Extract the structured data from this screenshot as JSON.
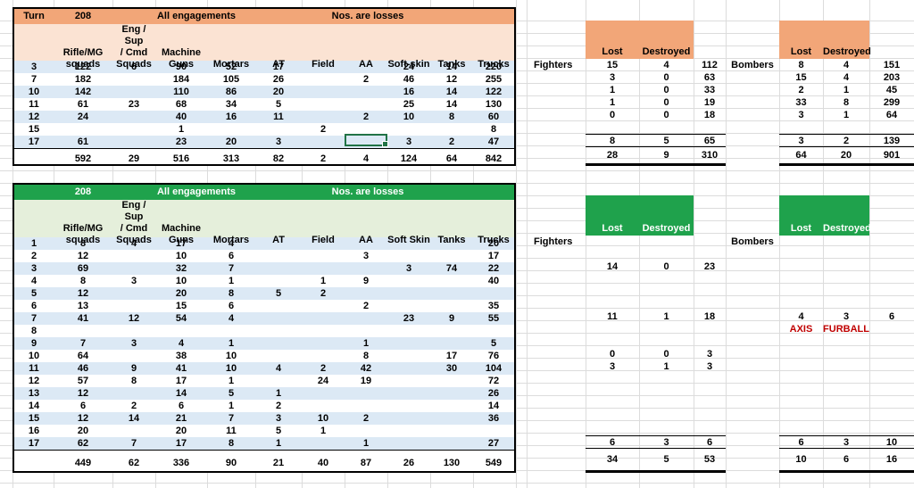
{
  "top_section": {
    "title": {
      "turn_label": "Turn",
      "turn_value": "208",
      "engagements": "All engagements",
      "losses": "Nos. are losses"
    },
    "columns": [
      "Rifle/MG\nsquads",
      "Eng / Sup\n/ Cmd\nSquads",
      "Machine\nGuns",
      "Mortars",
      "AT",
      "Field",
      "AA",
      "Soft-skin",
      "Tanks",
      "Trucks"
    ],
    "rows": [
      [
        "3",
        "122",
        "6",
        "90",
        "52",
        "17",
        "",
        "",
        "24",
        "14",
        "220"
      ],
      [
        "7",
        "182",
        "",
        "184",
        "105",
        "26",
        "",
        "2",
        "46",
        "12",
        "255"
      ],
      [
        "10",
        "142",
        "",
        "110",
        "86",
        "20",
        "",
        "",
        "16",
        "14",
        "122"
      ],
      [
        "11",
        "61",
        "23",
        "68",
        "34",
        "5",
        "",
        "",
        "25",
        "14",
        "130"
      ],
      [
        "12",
        "24",
        "",
        "40",
        "16",
        "11",
        "",
        "2",
        "10",
        "8",
        "60"
      ],
      [
        "15",
        "",
        "",
        "1",
        "",
        "",
        "2",
        "",
        "",
        "",
        "8"
      ],
      [
        "17",
        "61",
        "",
        "23",
        "20",
        "3",
        "",
        "",
        "3",
        "2",
        "47"
      ]
    ],
    "totals": [
      "592",
      "29",
      "516",
      "313",
      "82",
      "2",
      "4",
      "124",
      "64",
      "842"
    ],
    "selected_cell": {
      "row": "17",
      "column": "AA"
    },
    "air": {
      "lost_label": "Lost",
      "destroyed_label": "Destroyed",
      "fighters_label": "Fighters",
      "bombers_label": "Bombers",
      "fighters_rows": [
        [
          "15",
          "4",
          "112"
        ],
        [
          "3",
          "0",
          "63"
        ],
        [
          "1",
          "0",
          "33"
        ],
        [
          "1",
          "0",
          "19"
        ],
        [
          "0",
          "0",
          "18"
        ],
        [
          "",
          "",
          ""
        ],
        [
          "8",
          "5",
          "65"
        ]
      ],
      "fighters_totals": [
        "28",
        "9",
        "310"
      ],
      "bombers_rows": [
        [
          "8",
          "4",
          "151"
        ],
        [
          "15",
          "4",
          "203"
        ],
        [
          "2",
          "1",
          "45"
        ],
        [
          "33",
          "8",
          "299"
        ],
        [
          "3",
          "1",
          "64"
        ],
        [
          "",
          "",
          ""
        ],
        [
          "3",
          "2",
          "139"
        ]
      ],
      "bombers_totals": [
        "64",
        "20",
        "901"
      ]
    }
  },
  "bottom_section": {
    "title": {
      "turn_value": "208",
      "engagements": "All engagements",
      "losses": "Nos. are losses"
    },
    "columns": [
      "Rifle/MG\nsquads",
      "Eng / Sup\n/ Cmd\nSquads",
      "Machine\nGuns",
      "Mortars",
      "AT",
      "Field",
      "AA",
      "Soft Skin",
      "Tanks",
      "Trucks"
    ],
    "rows": [
      [
        "1",
        "8",
        "4",
        "17",
        "4",
        "",
        "",
        "",
        "",
        "",
        "20"
      ],
      [
        "2",
        "12",
        "",
        "10",
        "6",
        "",
        "",
        "3",
        "",
        "",
        "17"
      ],
      [
        "3",
        "69",
        "",
        "32",
        "7",
        "",
        "",
        "",
        "3",
        "74",
        "22"
      ],
      [
        "4",
        "8",
        "3",
        "10",
        "1",
        "",
        "1",
        "9",
        "",
        "",
        "40"
      ],
      [
        "5",
        "12",
        "",
        "20",
        "8",
        "5",
        "2",
        "",
        "",
        "",
        ""
      ],
      [
        "6",
        "13",
        "",
        "15",
        "6",
        "",
        "",
        "2",
        "",
        "",
        "35"
      ],
      [
        "7",
        "41",
        "12",
        "54",
        "4",
        "",
        "",
        "",
        "23",
        "9",
        "55"
      ],
      [
        "8",
        "",
        "",
        "",
        "",
        "",
        "",
        "",
        "",
        "",
        ""
      ],
      [
        "9",
        "7",
        "3",
        "4",
        "1",
        "",
        "",
        "1",
        "",
        "",
        "5"
      ],
      [
        "10",
        "64",
        "",
        "38",
        "10",
        "",
        "",
        "8",
        "",
        "17",
        "76"
      ],
      [
        "11",
        "46",
        "9",
        "41",
        "10",
        "4",
        "2",
        "42",
        "",
        "30",
        "104"
      ],
      [
        "12",
        "57",
        "8",
        "17",
        "1",
        "",
        "24",
        "19",
        "",
        "",
        "72"
      ],
      [
        "13",
        "12",
        "",
        "14",
        "5",
        "1",
        "",
        "",
        "",
        "",
        "26"
      ],
      [
        "14",
        "6",
        "2",
        "6",
        "1",
        "2",
        "",
        "",
        "",
        "",
        "14"
      ],
      [
        "15",
        "12",
        "14",
        "21",
        "7",
        "3",
        "10",
        "2",
        "",
        "",
        "36"
      ],
      [
        "16",
        "20",
        "",
        "20",
        "11",
        "5",
        "1",
        "",
        "",
        "",
        ""
      ],
      [
        "17",
        "62",
        "7",
        "17",
        "8",
        "1",
        "",
        "1",
        "",
        "",
        "27"
      ]
    ],
    "totals": [
      "449",
      "62",
      "336",
      "90",
      "21",
      "40",
      "87",
      "26",
      "130",
      "549"
    ],
    "air": {
      "lost_label": "Lost",
      "destroyed_label": "Destroyed",
      "fighters_label": "Fighters",
      "bombers_label": "Bombers",
      "fighters_rows": [
        [
          "",
          "",
          ""
        ],
        [
          "",
          "",
          ""
        ],
        [
          "14",
          "0",
          "23"
        ],
        [
          "",
          "",
          ""
        ],
        [
          "",
          "",
          ""
        ],
        [
          "",
          "",
          ""
        ],
        [
          "11",
          "1",
          "18"
        ],
        [
          "",
          "",
          ""
        ],
        [
          "",
          "",
          ""
        ],
        [
          "0",
          "0",
          "3"
        ],
        [
          "3",
          "1",
          "3"
        ],
        [
          "",
          "",
          ""
        ],
        [
          "",
          "",
          ""
        ],
        [
          "",
          "",
          ""
        ],
        [
          "",
          "",
          ""
        ],
        [
          "",
          "",
          ""
        ],
        [
          "6",
          "3",
          "6"
        ]
      ],
      "fighters_totals": [
        "34",
        "5",
        "53"
      ],
      "bombers_rows": [
        [
          "",
          "",
          ""
        ],
        [
          "",
          "",
          ""
        ],
        [
          "",
          "",
          ""
        ],
        [
          "",
          "",
          ""
        ],
        [
          "",
          "",
          ""
        ],
        [
          "",
          "",
          ""
        ],
        [
          "4",
          "3",
          "6"
        ],
        [
          "AXIS",
          "FURBALL",
          ""
        ],
        [
          "",
          "",
          ""
        ],
        [
          "",
          "",
          ""
        ],
        [
          "",
          "",
          ""
        ],
        [
          "",
          "",
          ""
        ],
        [
          "",
          "",
          ""
        ],
        [
          "",
          "",
          ""
        ],
        [
          "",
          "",
          ""
        ],
        [
          "",
          "",
          ""
        ],
        [
          "6",
          "3",
          "10"
        ]
      ],
      "bombers_totals": [
        "10",
        "6",
        "16"
      ]
    }
  },
  "colors": {
    "orange_header": "#F2A678",
    "orange_light": "#FBE3D3",
    "green_header": "#1FA24C",
    "green_light": "#E5EFDB",
    "row_stripe": "#DCE9F5",
    "note_red": "#C00000",
    "selection_green": "#217346"
  }
}
